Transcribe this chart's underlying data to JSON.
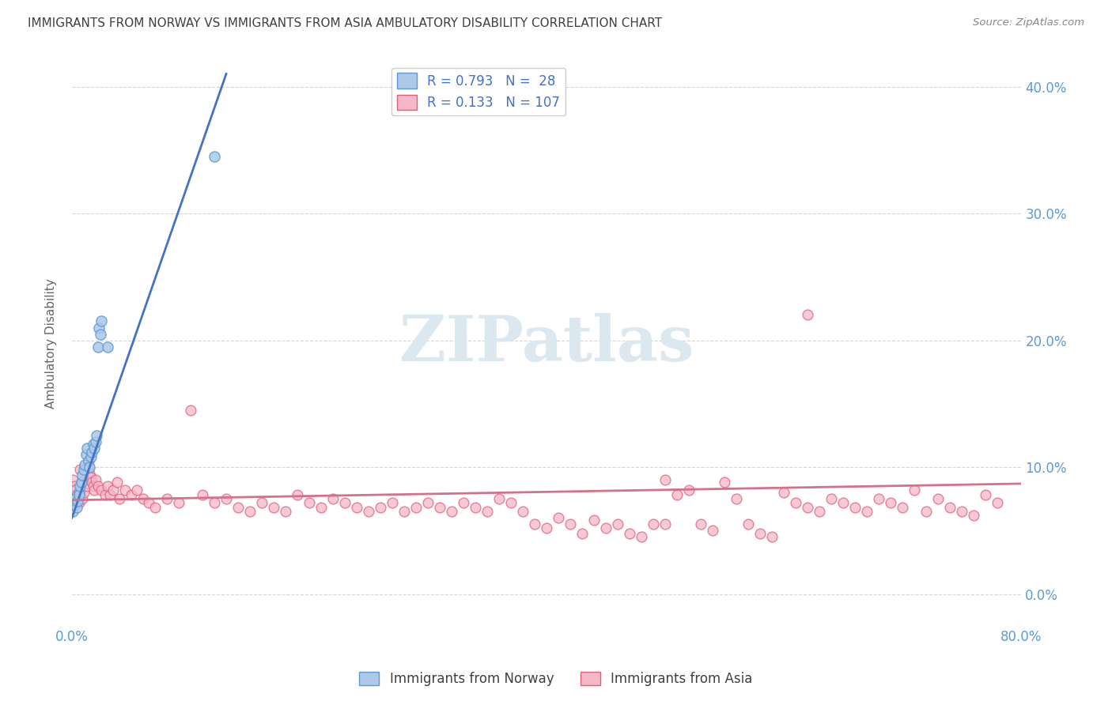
{
  "title": "IMMIGRANTS FROM NORWAY VS IMMIGRANTS FROM ASIA AMBULATORY DISABILITY CORRELATION CHART",
  "source": "Source: ZipAtlas.com",
  "ylabel": "Ambulatory Disability",
  "norway_R": 0.793,
  "norway_N": 28,
  "asia_R": 0.133,
  "asia_N": 107,
  "norway_color": "#adc8e8",
  "norway_edge_color": "#5b9bd5",
  "asia_color": "#f5b8c8",
  "asia_edge_color": "#e0607a",
  "norway_line_color": "#4472c4",
  "asia_line_color": "#d4708a",
  "background_color": "#ffffff",
  "grid_color": "#cccccc",
  "title_color": "#404040",
  "axis_tick_color": "#5b9bd5",
  "watermark_color": "#dce8f0",
  "watermark": "ZIPatlas",
  "xlim": [
    0.0,
    0.8
  ],
  "ylim": [
    -0.025,
    0.42
  ],
  "x_ticks": [
    0.0,
    0.1,
    0.2,
    0.3,
    0.4,
    0.5,
    0.6,
    0.7,
    0.8
  ],
  "y_ticks": [
    0.0,
    0.1,
    0.2,
    0.3,
    0.4
  ],
  "norway_x": [
    0.001,
    0.002,
    0.003,
    0.004,
    0.005,
    0.006,
    0.006,
    0.007,
    0.008,
    0.009,
    0.01,
    0.011,
    0.012,
    0.013,
    0.014,
    0.015,
    0.016,
    0.017,
    0.018,
    0.019,
    0.02,
    0.021,
    0.022,
    0.023,
    0.024,
    0.025,
    0.03,
    0.12
  ],
  "norway_y": [
    0.065,
    0.07,
    0.075,
    0.068,
    0.073,
    0.08,
    0.078,
    0.085,
    0.088,
    0.094,
    0.098,
    0.102,
    0.11,
    0.115,
    0.105,
    0.1,
    0.108,
    0.112,
    0.118,
    0.115,
    0.12,
    0.125,
    0.195,
    0.21,
    0.205,
    0.215,
    0.195,
    0.345
  ],
  "asia_x": [
    0.001,
    0.002,
    0.003,
    0.004,
    0.005,
    0.006,
    0.007,
    0.008,
    0.009,
    0.01,
    0.011,
    0.012,
    0.013,
    0.014,
    0.015,
    0.016,
    0.017,
    0.018,
    0.019,
    0.02,
    0.022,
    0.025,
    0.028,
    0.03,
    0.032,
    0.035,
    0.038,
    0.04,
    0.045,
    0.05,
    0.055,
    0.06,
    0.065,
    0.07,
    0.08,
    0.09,
    0.1,
    0.11,
    0.12,
    0.13,
    0.14,
    0.15,
    0.16,
    0.17,
    0.18,
    0.19,
    0.2,
    0.21,
    0.22,
    0.23,
    0.24,
    0.25,
    0.26,
    0.27,
    0.28,
    0.29,
    0.3,
    0.31,
    0.32,
    0.33,
    0.34,
    0.35,
    0.36,
    0.37,
    0.38,
    0.39,
    0.4,
    0.41,
    0.42,
    0.43,
    0.44,
    0.45,
    0.46,
    0.47,
    0.48,
    0.49,
    0.5,
    0.51,
    0.52,
    0.53,
    0.54,
    0.55,
    0.56,
    0.57,
    0.58,
    0.59,
    0.6,
    0.61,
    0.62,
    0.63,
    0.64,
    0.65,
    0.66,
    0.67,
    0.68,
    0.69,
    0.7,
    0.71,
    0.72,
    0.73,
    0.74,
    0.75,
    0.76,
    0.77,
    0.78,
    0.5,
    0.62
  ],
  "asia_y": [
    0.09,
    0.085,
    0.082,
    0.078,
    0.075,
    0.072,
    0.098,
    0.088,
    0.075,
    0.08,
    0.1,
    0.092,
    0.085,
    0.1,
    0.095,
    0.092,
    0.088,
    0.085,
    0.082,
    0.09,
    0.085,
    0.082,
    0.078,
    0.085,
    0.078,
    0.082,
    0.088,
    0.075,
    0.082,
    0.078,
    0.082,
    0.075,
    0.072,
    0.068,
    0.075,
    0.072,
    0.145,
    0.078,
    0.072,
    0.075,
    0.068,
    0.065,
    0.072,
    0.068,
    0.065,
    0.078,
    0.072,
    0.068,
    0.075,
    0.072,
    0.068,
    0.065,
    0.068,
    0.072,
    0.065,
    0.068,
    0.072,
    0.068,
    0.065,
    0.072,
    0.068,
    0.065,
    0.075,
    0.072,
    0.065,
    0.055,
    0.052,
    0.06,
    0.055,
    0.048,
    0.058,
    0.052,
    0.055,
    0.048,
    0.045,
    0.055,
    0.09,
    0.078,
    0.082,
    0.055,
    0.05,
    0.088,
    0.075,
    0.055,
    0.048,
    0.045,
    0.08,
    0.072,
    0.068,
    0.065,
    0.075,
    0.072,
    0.068,
    0.065,
    0.075,
    0.072,
    0.068,
    0.082,
    0.065,
    0.075,
    0.068,
    0.065,
    0.062,
    0.078,
    0.072,
    0.055,
    0.22
  ],
  "norway_line_x": [
    0.0,
    0.13
  ],
  "norway_line_y": [
    0.06,
    0.41
  ],
  "asia_line_x": [
    0.0,
    0.8
  ],
  "asia_line_y": [
    0.074,
    0.087
  ]
}
